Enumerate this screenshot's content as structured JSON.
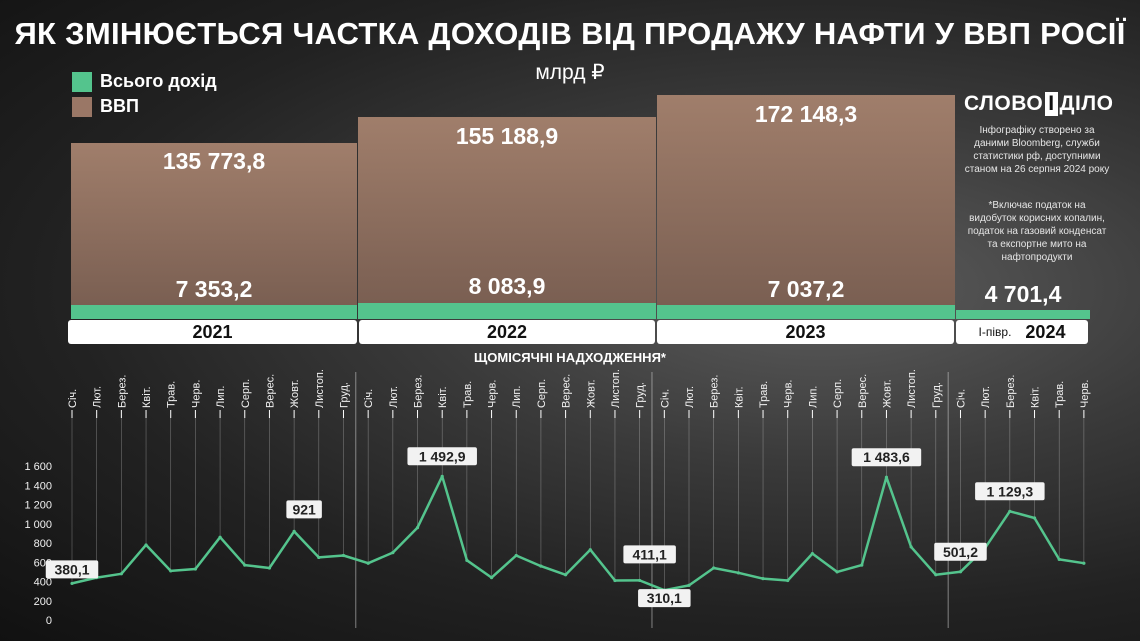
{
  "title": "ЯК ЗМІНЮЄТЬСЯ ЧАСТКА ДОХОДІВ ВІД ПРОДАЖУ НАФТИ У ВВП РОСІЇ",
  "unit": "млрд ₽",
  "legend": {
    "revenue": "Всього дохід",
    "gdp": "ВВП",
    "revenue_color": "#54c48d",
    "gdp_color": "#9a7766"
  },
  "logo": {
    "word1": "СЛОВО",
    "word2": "І",
    "word3": "ДІЛО"
  },
  "notes": {
    "source": "Інфографіку створено за даними Bloomberg, служби статистики рф, доступними станом на 26 серпня 2024 року",
    "footnote": "*Включає податок на видобуток корисних копалин, податок на газовий конденсат та експортне мито на нафтопродукти"
  },
  "annual": [
    {
      "year": "2021",
      "prefix": "",
      "gdp": "135 773,8",
      "revenue": "7 353,2"
    },
    {
      "year": "2022",
      "prefix": "",
      "gdp": "155 188,9",
      "revenue": "8 083,9"
    },
    {
      "year": "2023",
      "prefix": "",
      "gdp": "172 148,3",
      "revenue": "7 037,2"
    },
    {
      "year": "2024",
      "prefix": "I-півр.",
      "gdp": "",
      "revenue": "4 701,4"
    }
  ],
  "monthly_title": "ЩОМІСЯЧНІ НАДХОДЖЕННЯ*",
  "chart_data": {
    "type": "line",
    "ylim": [
      0,
      1600
    ],
    "y_ticks": [
      "0",
      "200",
      "400",
      "600",
      "800",
      "1 000",
      "1 200",
      "1 400",
      "1 600"
    ],
    "categories": [
      "Січ.",
      "Лют.",
      "Берез.",
      "Квіт.",
      "Трав.",
      "Черв.",
      "Лип.",
      "Серп.",
      "Верес.",
      "Жовт.",
      "Листоп.",
      "Груд.",
      "Січ.",
      "Лют.",
      "Берез.",
      "Квіт.",
      "Трав.",
      "Черв.",
      "Лип.",
      "Серп.",
      "Верес.",
      "Жовт.",
      "Листоп.",
      "Груд.",
      "Січ.",
      "Лют.",
      "Берез.",
      "Квіт.",
      "Трав.",
      "Черв.",
      "Лип.",
      "Серп.",
      "Верес.",
      "Жовт.",
      "Листоп.",
      "Груд.",
      "Січ.",
      "Лют.",
      "Берез.",
      "Квіт.",
      "Трав.",
      "Черв."
    ],
    "years": [
      "2021",
      "2022",
      "2023",
      "2024"
    ],
    "values": [
      380.1,
      440,
      480,
      780,
      510,
      530,
      860,
      570,
      540,
      921,
      650,
      670,
      590,
      700,
      960,
      1492.9,
      620,
      440,
      670,
      560,
      470,
      730,
      410,
      411.1,
      310.1,
      360,
      540,
      490,
      430,
      410,
      690,
      500,
      570,
      1483.6,
      760,
      470,
      501.2,
      750,
      1129.3,
      1060,
      630,
      590
    ],
    "annotations": [
      {
        "index": 0,
        "label": "380,1"
      },
      {
        "index": 9,
        "label": "921"
      },
      {
        "index": 15,
        "label": "1 492,9"
      },
      {
        "index": 23,
        "label": "411,1"
      },
      {
        "index": 24,
        "label": "310,1"
      },
      {
        "index": 33,
        "label": "1 483,6"
      },
      {
        "index": 36,
        "label": "501,2"
      },
      {
        "index": 38,
        "label": "1 129,3"
      }
    ]
  }
}
